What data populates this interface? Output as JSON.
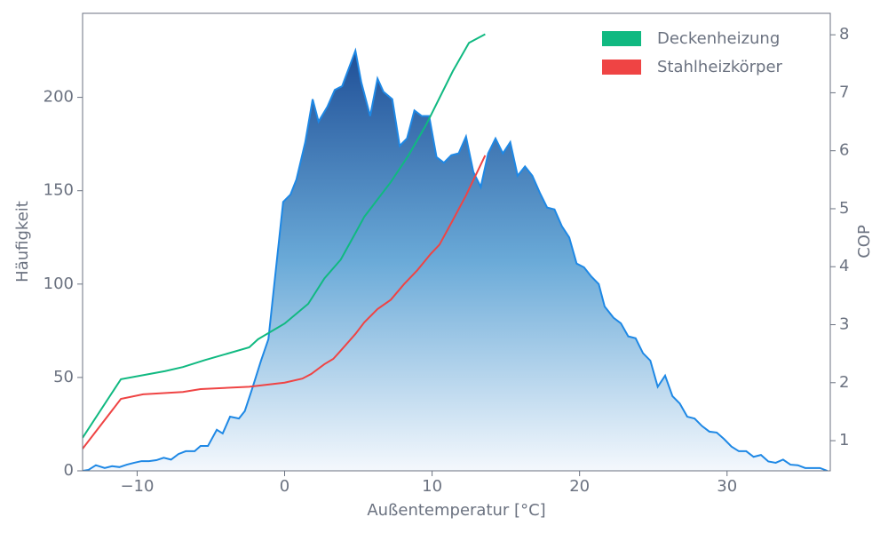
{
  "chart_data": {
    "type": "area",
    "xlabel": "Außentemperatur [°C]",
    "ylabel": "Häufigkeit",
    "y2label": "COP",
    "xlim": [
      -13.7,
      37.0
    ],
    "ylim": [
      0,
      245
    ],
    "y2lim": [
      0.48,
      8.37
    ],
    "xticks": [
      {
        "value": -10,
        "label": "−10"
      },
      0,
      10,
      20,
      30
    ],
    "yticks": [
      0,
      50,
      100,
      150,
      200
    ],
    "y2ticks": [
      1,
      2,
      3,
      4,
      5,
      6,
      7,
      8
    ],
    "legend": "upper right",
    "series": [
      {
        "type": "area",
        "color": "#1e88e5",
        "x": [
          -13.7,
          -13.3,
          -12.8,
          -12.2,
          -11.7,
          -11.2,
          -10.7,
          -10.2,
          -9.7,
          -9.2,
          -8.7,
          -8.2,
          -7.7,
          -7.2,
          -6.7,
          -6.1,
          -5.7,
          -5.2,
          -4.6,
          -4.2,
          -3.7,
          -3.1,
          -2.7,
          -2.2,
          -1.6,
          -1.1,
          -0.7,
          -0.1,
          0.4,
          0.8,
          1.4,
          1.9,
          2.3,
          2.9,
          3.4,
          3.9,
          4.8,
          5.2,
          5.8,
          6.3,
          6.7,
          7.3,
          7.8,
          8.3,
          8.8,
          9.3,
          9.8,
          10.3,
          10.8,
          11.3,
          11.8,
          12.3,
          12.8,
          13.3,
          13.8,
          14.3,
          14.8,
          15.3,
          15.8,
          16.3,
          16.8,
          17.3,
          17.8,
          18.3,
          18.8,
          19.3,
          19.8,
          20.3,
          20.8,
          21.3,
          21.7,
          22.3,
          22.8,
          23.3,
          23.8,
          24.3,
          24.8,
          25.3,
          25.8,
          26.3,
          26.8,
          27.3,
          27.8,
          28.3,
          28.8,
          29.3,
          29.8,
          30.3,
          30.8,
          31.3,
          31.8,
          32.3,
          32.8,
          33.3,
          33.8,
          34.3,
          34.8,
          35.3,
          35.8,
          36.3,
          36.8
        ],
        "values": [
          0,
          0.5,
          3,
          1.5,
          2.5,
          2,
          3.3,
          4.3,
          5.2,
          5.2,
          5.7,
          7,
          6,
          9,
          10.5,
          10.5,
          13.3,
          13.3,
          22,
          20,
          29,
          28,
          32,
          44,
          59,
          70.5,
          100,
          144,
          148,
          156,
          176,
          199,
          187,
          195,
          204,
          206,
          225,
          208,
          190,
          210,
          203,
          199,
          174,
          178,
          193,
          190,
          190,
          168,
          165,
          169,
          170,
          179,
          160,
          152,
          170,
          178,
          170,
          176,
          158,
          163,
          158,
          149,
          141,
          140,
          131,
          125,
          111,
          109,
          104,
          100,
          88,
          82,
          79,
          72,
          71,
          63,
          59,
          45,
          51,
          40,
          36,
          29,
          28,
          24,
          21,
          20.5,
          17,
          13,
          10.5,
          10.5,
          7.5,
          8.5,
          5,
          4.3,
          6,
          3.3,
          3,
          1.5,
          1.5,
          1.5,
          0
        ]
      },
      {
        "name": "Deckenheizung",
        "type": "line",
        "color": "#10b981",
        "axis": "y2",
        "x": [
          -13.7,
          -11.1,
          -8.1,
          -6.9,
          -5.4,
          -2.4,
          -1.8,
          0,
          1.6,
          2.7,
          3.8,
          4.8,
          5.4,
          7.2,
          8.4,
          9.6,
          11.4,
          12.5,
          13.6
        ],
        "values": [
          1.05,
          2.06,
          2.2,
          2.27,
          2.39,
          2.61,
          2.75,
          3.02,
          3.36,
          3.8,
          4.12,
          4.58,
          4.86,
          5.46,
          5.92,
          6.45,
          7.37,
          7.86,
          8.01
        ]
      },
      {
        "name": "Stahlheizkörper",
        "type": "line",
        "color": "#ef4444",
        "axis": "y2",
        "x": [
          -13.7,
          -11.1,
          -9.6,
          -6.9,
          -5.7,
          -2.4,
          0,
          1.2,
          1.8,
          2.7,
          3.3,
          3.9,
          4.8,
          5.4,
          6.3,
          7.2,
          8.1,
          9.0,
          9.9,
          10.5,
          11.4,
          12.3,
          13.6
        ],
        "values": [
          0.86,
          1.72,
          1.8,
          1.84,
          1.89,
          1.93,
          2.0,
          2.07,
          2.15,
          2.32,
          2.41,
          2.58,
          2.84,
          3.04,
          3.27,
          3.43,
          3.7,
          3.94,
          4.22,
          4.38,
          4.8,
          5.23,
          5.92
        ]
      }
    ]
  }
}
